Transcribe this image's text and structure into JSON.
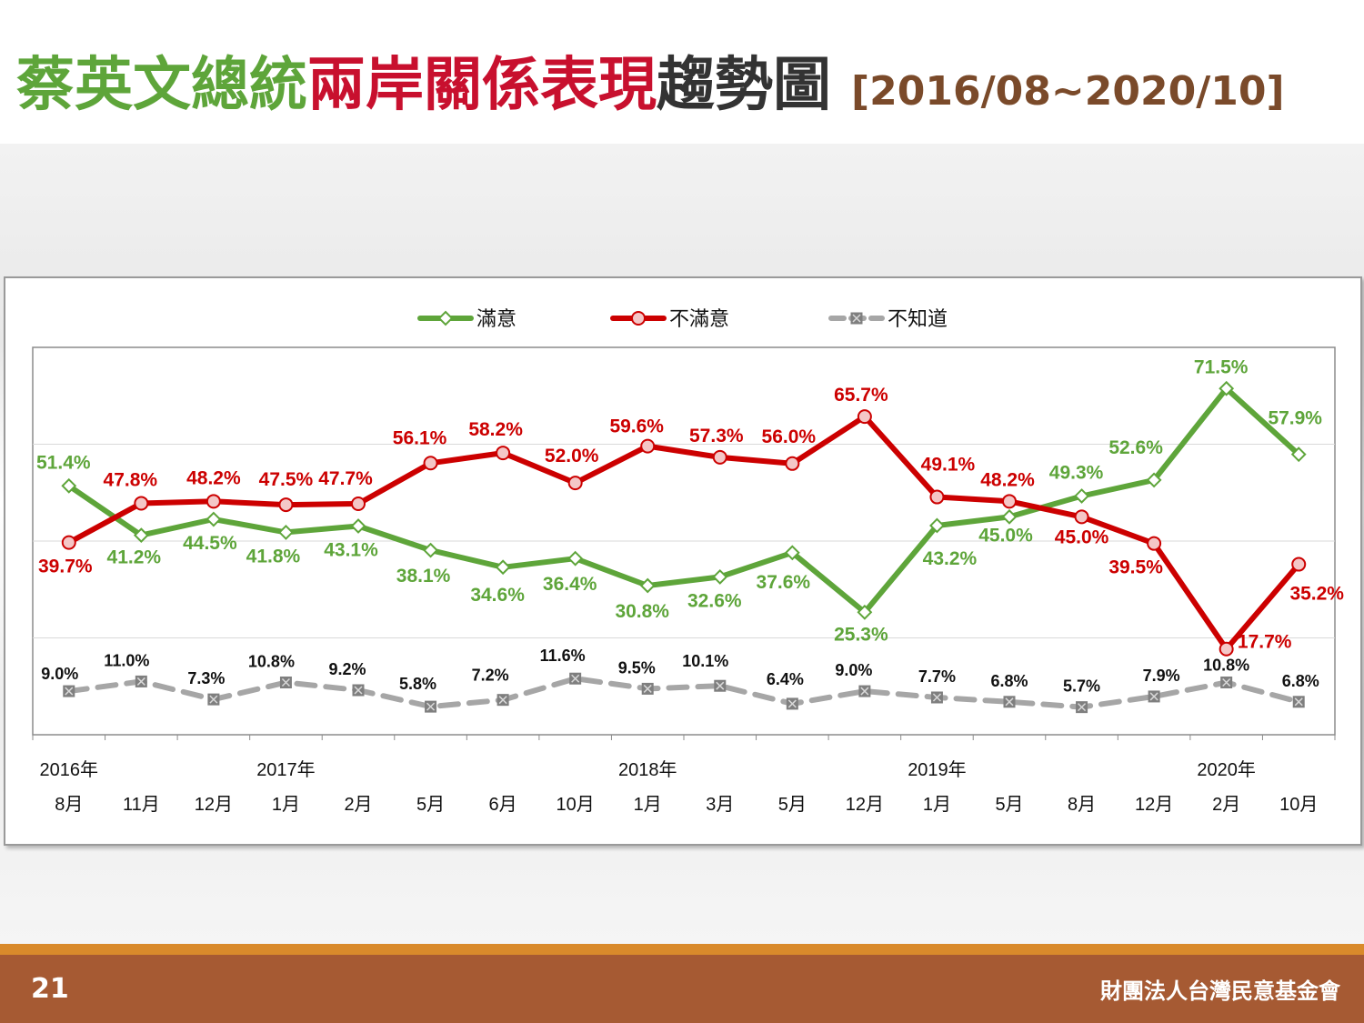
{
  "title": {
    "part1": "蔡英文總統",
    "part2": "兩岸關係表現",
    "part3": "趨勢圖",
    "range": "[2016/08~2020/10]"
  },
  "footer": {
    "page_number": "21",
    "organization": "財團法人台灣民意基金會"
  },
  "colors": {
    "satisfied": "#5ea53a",
    "dissatisfied": "#cc0000",
    "unknown": "#a6a6a6"
  },
  "chart_data": {
    "type": "line",
    "title": "",
    "xlabel": "",
    "ylabel": "",
    "ylim": [
      0,
      80
    ],
    "grid": "horizontal",
    "legend_position": "top",
    "categories": [
      "8月",
      "11月",
      "12月",
      "1月",
      "2月",
      "5月",
      "6月",
      "10月",
      "1月",
      "3月",
      "5月",
      "12月",
      "1月",
      "5月",
      "8月",
      "12月",
      "2月",
      "10月"
    ],
    "year_labels": [
      {
        "index": 0,
        "label": "2016年"
      },
      {
        "index": 3,
        "label": "2017年"
      },
      {
        "index": 8,
        "label": "2018年"
      },
      {
        "index": 12,
        "label": "2019年"
      },
      {
        "index": 16,
        "label": "2020年"
      }
    ],
    "series": [
      {
        "name": "滿意",
        "color": "#5ea53a",
        "marker": "diamond",
        "values": [
          51.4,
          41.2,
          44.5,
          41.8,
          43.1,
          38.1,
          34.6,
          36.4,
          30.8,
          32.6,
          37.6,
          25.3,
          43.2,
          45.0,
          49.3,
          52.6,
          71.5,
          57.9
        ],
        "labels": [
          "51.4%",
          "41.2%",
          "44.5%",
          "41.8%",
          "43.1%",
          "38.1%",
          "34.6%",
          "36.4%",
          "30.8%",
          "32.6%",
          "37.6%",
          "25.3%",
          "43.2%",
          "45.0%",
          "49.3%",
          "52.6%",
          "71.5%",
          "57.9%"
        ]
      },
      {
        "name": "不滿意",
        "color": "#cc0000",
        "marker": "circle",
        "values": [
          39.7,
          47.8,
          48.2,
          47.5,
          47.7,
          56.1,
          58.2,
          52.0,
          59.6,
          57.3,
          56.0,
          65.7,
          49.1,
          48.2,
          45.0,
          39.5,
          17.7,
          35.2
        ],
        "labels": [
          "39.7%",
          "47.8%",
          "48.2%",
          "47.5%",
          "47.7%",
          "56.1%",
          "58.2%",
          "52.0%",
          "59.6%",
          "57.3%",
          "56.0%",
          "65.7%",
          "49.1%",
          "48.2%",
          "45.0%",
          "39.5%",
          "17.7%",
          "35.2%"
        ]
      },
      {
        "name": "不知道",
        "color": "#a6a6a6",
        "marker": "square-x",
        "dashed": true,
        "values": [
          9.0,
          11.0,
          7.3,
          10.8,
          9.2,
          5.8,
          7.2,
          11.6,
          9.5,
          10.1,
          6.4,
          9.0,
          7.7,
          6.8,
          5.7,
          7.9,
          10.8,
          6.8
        ],
        "labels": [
          "9.0%",
          "11.0%",
          "7.3%",
          "10.8%",
          "9.2%",
          "5.8%",
          "7.2%",
          "11.6%",
          "9.5%",
          "10.1%",
          "6.4%",
          "9.0%",
          "7.7%",
          "6.8%",
          "5.7%",
          "7.9%",
          "10.8%",
          "6.8%"
        ]
      }
    ]
  }
}
